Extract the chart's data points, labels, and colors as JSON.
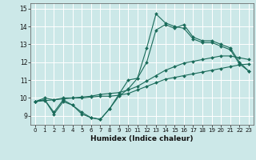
{
  "xlabel": "Humidex (Indice chaleur)",
  "bg_color": "#cce8e8",
  "line_color": "#1a6b5a",
  "grid_color": "#ffffff",
  "xlim": [
    -0.5,
    23.5
  ],
  "ylim": [
    8.5,
    15.3
  ],
  "yticks": [
    9,
    10,
    11,
    12,
    13,
    14,
    15
  ],
  "xticks": [
    0,
    1,
    2,
    3,
    4,
    5,
    6,
    7,
    8,
    9,
    10,
    11,
    12,
    13,
    14,
    15,
    16,
    17,
    18,
    19,
    20,
    21,
    22,
    23
  ],
  "series": [
    [
      9.8,
      9.9,
      9.1,
      9.8,
      9.6,
      9.1,
      8.9,
      8.8,
      9.4,
      10.2,
      11.0,
      11.1,
      12.8,
      14.7,
      14.2,
      14.0,
      13.9,
      13.3,
      13.1,
      13.1,
      12.9,
      12.7,
      11.9,
      11.5
    ],
    [
      9.8,
      9.9,
      9.2,
      9.9,
      9.6,
      9.2,
      8.9,
      8.8,
      9.4,
      10.1,
      10.5,
      11.1,
      12.0,
      13.8,
      14.1,
      13.9,
      14.1,
      13.4,
      13.2,
      13.2,
      13.0,
      12.8,
      12.0,
      11.5
    ],
    [
      9.8,
      10.0,
      9.9,
      10.0,
      10.0,
      10.0,
      10.05,
      10.1,
      10.1,
      10.15,
      10.25,
      10.45,
      10.65,
      10.85,
      11.05,
      11.15,
      11.25,
      11.35,
      11.45,
      11.55,
      11.65,
      11.75,
      11.85,
      11.9
    ],
    [
      9.8,
      9.85,
      9.9,
      9.95,
      10.0,
      10.05,
      10.1,
      10.2,
      10.25,
      10.3,
      10.45,
      10.65,
      10.95,
      11.25,
      11.55,
      11.75,
      11.95,
      12.05,
      12.15,
      12.25,
      12.35,
      12.35,
      12.25,
      12.15
    ]
  ]
}
